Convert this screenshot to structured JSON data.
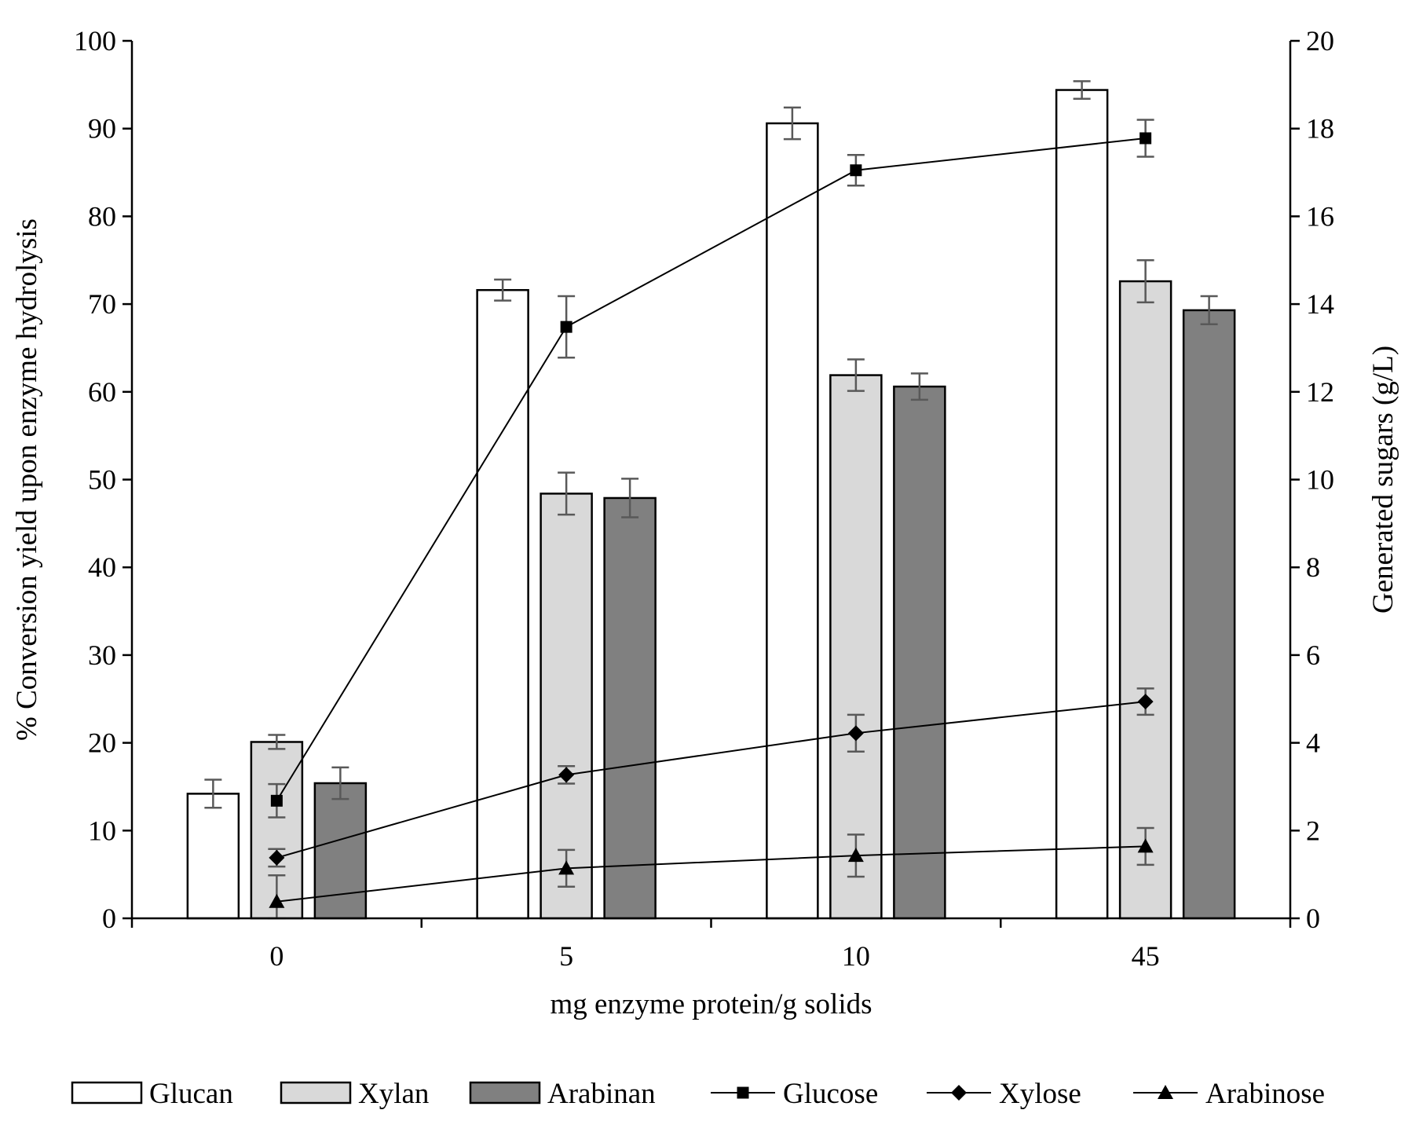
{
  "chart_data": {
    "type": "bar",
    "categories": [
      "0",
      "5",
      "10",
      "45"
    ],
    "xlabel": "mg enzyme protein/g solids",
    "ylabel": "% Conversion yield upon enzyme hydrolysis",
    "y2label": "Generated sugars (g/L)",
    "ylim": [
      0,
      100
    ],
    "y2lim": [
      0,
      20
    ],
    "yticks": [
      "0",
      "10",
      "20",
      "30",
      "40",
      "50",
      "60",
      "70",
      "80",
      "90",
      "100"
    ],
    "y2ticks": [
      "0",
      "2",
      "4",
      "6",
      "8",
      "10",
      "12",
      "14",
      "16",
      "18",
      "20"
    ],
    "grid": false,
    "legend_position": "bottom",
    "bar_series": [
      {
        "name": "Glucan",
        "color": "#ffffff",
        "values": [
          14.2,
          71.6,
          90.6,
          94.4
        ],
        "errors": [
          1.6,
          1.2,
          1.8,
          1.0
        ]
      },
      {
        "name": "Xylan",
        "color": "#d9d9d9",
        "values": [
          20.1,
          48.4,
          61.9,
          72.6
        ],
        "errors": [
          0.8,
          2.4,
          1.8,
          2.4
        ]
      },
      {
        "name": "Arabinan",
        "color": "#808080",
        "values": [
          15.4,
          47.9,
          60.6,
          69.3
        ],
        "errors": [
          1.8,
          2.2,
          1.5,
          1.6
        ]
      }
    ],
    "line_series": [
      {
        "name": "Glucose",
        "marker": "square",
        "axis": "right",
        "values": [
          2.68,
          13.48,
          17.05,
          17.78
        ],
        "errors": [
          0.38,
          0.7,
          0.35,
          0.42
        ]
      },
      {
        "name": "Xylose",
        "marker": "diamond",
        "axis": "right",
        "values": [
          1.38,
          3.27,
          4.22,
          4.94
        ],
        "errors": [
          0.2,
          0.2,
          0.42,
          0.3
        ]
      },
      {
        "name": "Arabinose",
        "marker": "triangle",
        "axis": "right",
        "values": [
          0.38,
          1.14,
          1.43,
          1.64
        ],
        "errors": [
          0.6,
          0.42,
          0.48,
          0.42
        ]
      }
    ]
  }
}
